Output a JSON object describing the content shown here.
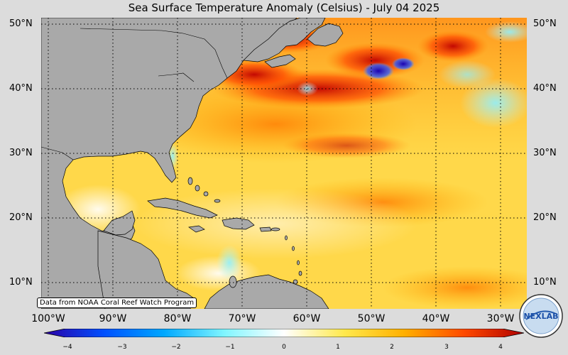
{
  "title": "Sea Surface Temperature Anomaly (Celsius) - July 04 2025",
  "credit": "Data from NOAA Coral Reef Watch Program",
  "lat_labels": [
    "50°N",
    "40°N",
    "30°N",
    "20°N",
    "10°N"
  ],
  "lon_labels": [
    "100°W",
    "90°W",
    "80°W",
    "70°W",
    "60°W",
    "50°W",
    "40°W",
    "30°W"
  ],
  "colorbar": {
    "ticks": [
      "−4",
      "−3",
      "−2",
      "−1",
      "0",
      "1",
      "2",
      "3",
      "4"
    ],
    "colors": [
      "#2b00a6",
      "#0050ff",
      "#00a8ff",
      "#7ff5ff",
      "#ffffff",
      "#ffe94d",
      "#ffb000",
      "#ff4a00",
      "#b00000"
    ]
  },
  "logo_text": "NEXLAB",
  "colors": {
    "land": "#a9a9a9",
    "ocean_base": "#ffd84a",
    "background": "#dcdcdc"
  }
}
